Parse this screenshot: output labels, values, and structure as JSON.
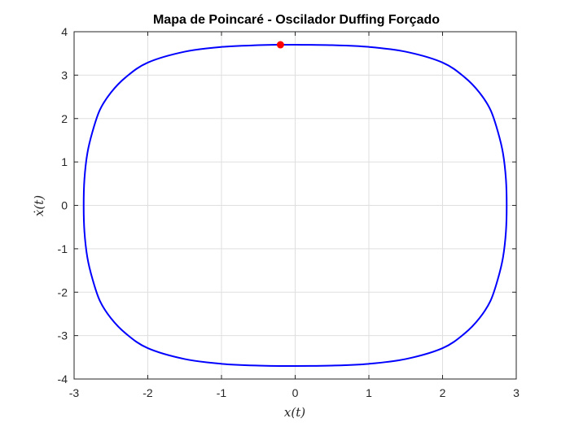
{
  "chart_data": {
    "type": "line",
    "title": "Mapa de Poincaré - Oscilador Duffing Forçado",
    "xlabel": "x(t)",
    "ylabel": "ẋ(t)",
    "xlim": [
      -3,
      3
    ],
    "ylim": [
      -4,
      4
    ],
    "xticks": [
      -3,
      -2,
      -1,
      0,
      1,
      2,
      3
    ],
    "yticks": [
      -4,
      -3,
      -2,
      -1,
      0,
      1,
      2,
      3,
      4
    ],
    "xtick_labels": [
      "-3",
      "-2",
      "-1",
      "0",
      "1",
      "2",
      "3"
    ],
    "ytick_labels": [
      "-4",
      "-3",
      "-2",
      "-1",
      "0",
      "1",
      "2",
      "3",
      "4"
    ],
    "grid": true,
    "box": true,
    "series": [
      {
        "kind": "closed-curve",
        "color": "#0000ff",
        "x": [
          -0.2,
          0.0,
          0.5,
          1.0,
          1.5,
          2.0,
          2.3,
          2.5,
          2.65,
          2.75,
          2.82,
          2.86,
          2.87,
          2.86,
          2.82,
          2.75,
          2.65,
          2.5,
          2.3,
          2.0,
          1.5,
          1.0,
          0.5,
          0.0,
          -0.5,
          -1.0,
          -1.5,
          -2.0,
          -2.3,
          -2.5,
          -2.65,
          -2.75,
          -2.82,
          -2.86,
          -2.87,
          -2.86,
          -2.82,
          -2.75,
          -2.65,
          -2.5,
          -2.3,
          -2.0,
          -1.5,
          -1.0,
          -0.5,
          -0.2
        ],
        "y": [
          3.7,
          3.7,
          3.69,
          3.65,
          3.54,
          3.29,
          2.95,
          2.6,
          2.2,
          1.7,
          1.2,
          0.6,
          0.0,
          -0.6,
          -1.2,
          -1.7,
          -2.2,
          -2.6,
          -2.95,
          -3.29,
          -3.54,
          -3.65,
          -3.69,
          -3.7,
          -3.69,
          -3.65,
          -3.54,
          -3.29,
          -2.95,
          -2.6,
          -2.2,
          -1.7,
          -1.2,
          -0.6,
          0.0,
          0.6,
          1.2,
          1.7,
          2.2,
          2.6,
          2.95,
          3.29,
          3.54,
          3.65,
          3.69,
          3.7
        ]
      }
    ],
    "markers": [
      {
        "x": -0.2,
        "y": 3.7,
        "color": "#ff0000"
      }
    ]
  }
}
